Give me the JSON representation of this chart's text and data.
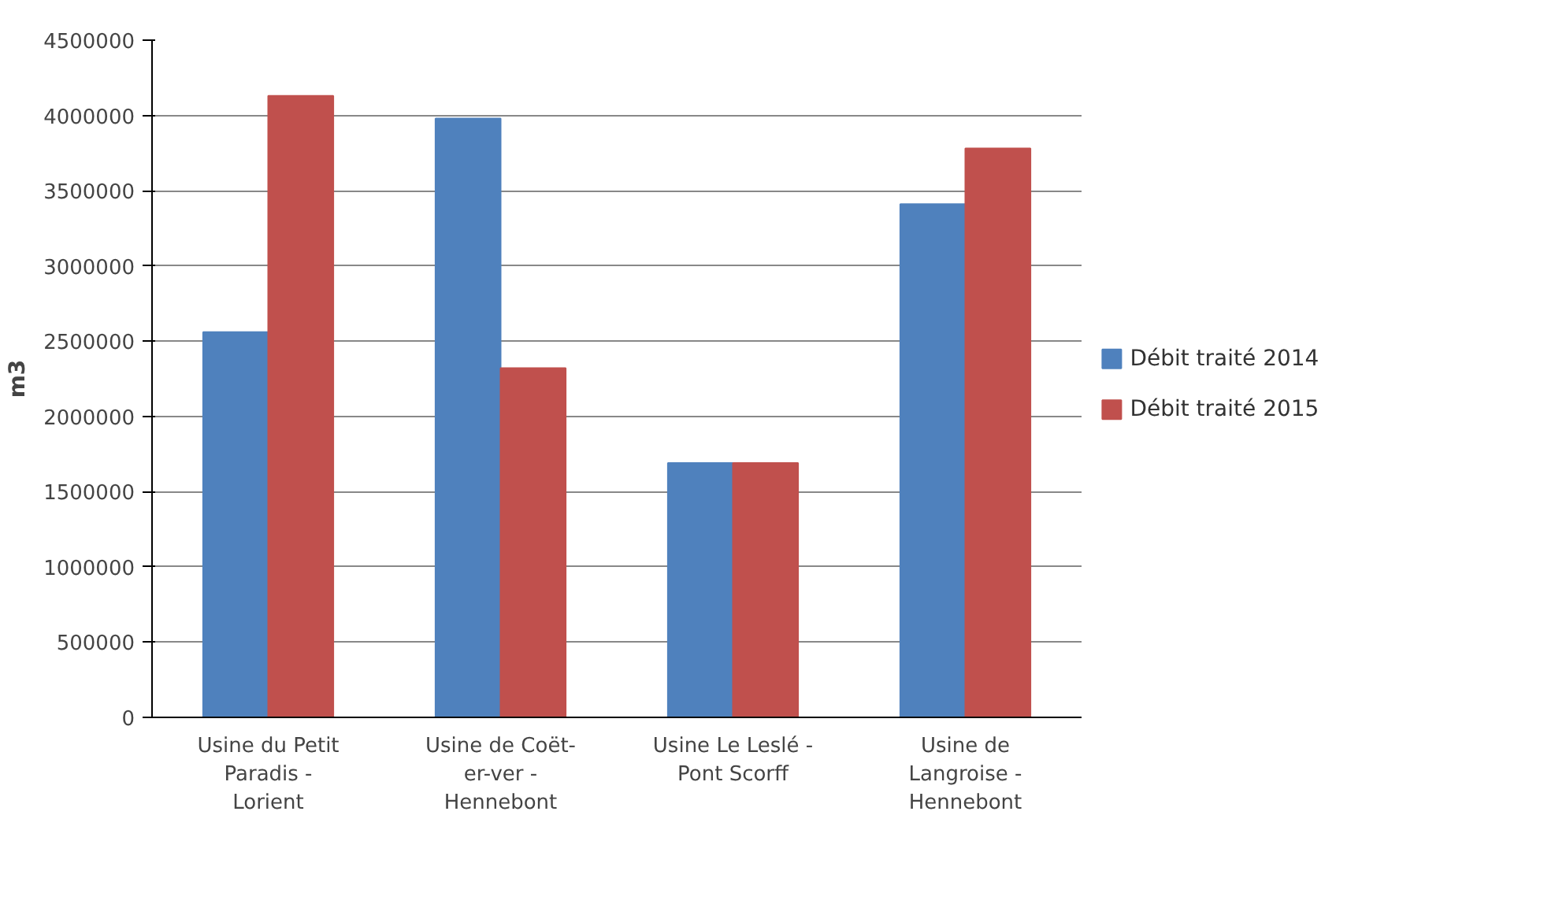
{
  "chart_data": {
    "type": "bar",
    "ylabel": "m3",
    "categories": [
      "Usine du Petit Paradis - Lorient",
      "Usine de Coët-er-ver - Hennebont",
      "Usine Le Leslé - Pont Scorff",
      "Usine de Langroise - Hennebont"
    ],
    "series": [
      {
        "name": "Débit traité 2014",
        "color": "#4f81bd",
        "values": [
          2560000,
          3980000,
          1690000,
          3410000
        ]
      },
      {
        "name": "Débit traité 2015",
        "color": "#c0504d",
        "values": [
          4130000,
          2320000,
          1690000,
          3780000
        ]
      }
    ],
    "ylim": [
      0,
      4500000
    ],
    "yticks": [
      0,
      500000,
      1000000,
      1500000,
      2000000,
      2500000,
      3000000,
      3500000,
      4000000,
      4500000
    ],
    "grid": "y",
    "legend": "right"
  }
}
